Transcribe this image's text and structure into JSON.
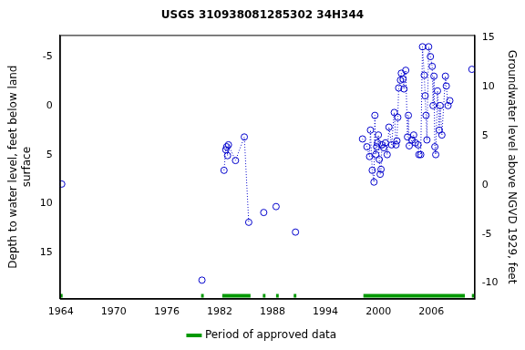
{
  "chart_data": {
    "type": "scatter",
    "title": "USGS 310938081285302 34H344",
    "ylabel": [
      "Depth to water level, feet below land",
      "surface"
    ],
    "y2label": "Groundwater level above NGVD 1929, feet",
    "xlim": [
      1963.9,
      2010.9
    ],
    "xticks": [
      1964,
      1970,
      1976,
      1982,
      1988,
      1994,
      2000,
      2006
    ],
    "ylim": [
      19.7,
      -7.2
    ],
    "yticks": [
      15,
      10,
      5,
      0,
      -5
    ],
    "y2lim": [
      -11.6,
      15.3
    ],
    "y2ticks": [
      -10,
      -5,
      0,
      5,
      10,
      15
    ],
    "grid": false,
    "legend": "bottom",
    "series": [
      {
        "color": "#0000cc",
        "marker": "circle",
        "line_style": "dotted",
        "x": [
          1964.1,
          1980.0,
          1982.5,
          1982.7,
          1982.8,
          1982.9,
          1983.0,
          1983.8,
          1984.8,
          1985.3,
          1987.0,
          1988.4,
          1990.6,
          1998.2,
          1998.7,
          1999.0,
          1999.1,
          1999.3,
          1999.5,
          1999.6,
          1999.7,
          1999.8,
          1999.9,
          2000.0,
          2000.1,
          2000.2,
          2000.3,
          2000.4,
          2000.6,
          2000.8,
          2001.0,
          2001.2,
          2001.5,
          2001.8,
          2002.0,
          2002.1,
          2002.2,
          2002.3,
          2002.5,
          2002.6,
          2002.8,
          2002.9,
          2003.1,
          2003.3,
          2003.4,
          2003.5,
          2003.8,
          2004.0,
          2004.2,
          2004.5,
          2004.6,
          2004.8,
          2005.0,
          2005.2,
          2005.3,
          2005.4,
          2005.5,
          2005.7,
          2005.9,
          2006.1,
          2006.2,
          2006.3,
          2006.4,
          2006.5,
          2006.7,
          2006.9,
          2007.0,
          2007.2,
          2007.6,
          2007.7,
          2007.9,
          2008.1,
          2010.6
        ],
        "values": [
          8,
          17.8,
          6.6,
          4.5,
          4.2,
          5.1,
          4.0,
          5.6,
          3.2,
          11.9,
          10.9,
          10.3,
          12.9,
          3.4,
          4.2,
          5.2,
          2.5,
          6.6,
          7.8,
          1.0,
          5.0,
          4.2,
          3.8,
          3.0,
          5.5,
          7.0,
          6.5,
          4.0,
          4.3,
          3.8,
          5.0,
          2.2,
          4.0,
          0.7,
          4.0,
          3.6,
          1.2,
          -1.8,
          -2.6,
          -3.3,
          -2.7,
          -1.7,
          -3.6,
          3.2,
          1.0,
          4.1,
          3.5,
          3.0,
          3.8,
          4.0,
          5.0,
          5.0,
          -6.0,
          -3.1,
          -1.0,
          1.0,
          3.5,
          -6.0,
          -5.0,
          -4.0,
          0.0,
          -3.0,
          4.2,
          5.0,
          -1.5,
          2.5,
          0.0,
          3.0,
          -3.0,
          -2.0,
          0.0,
          -0.5,
          -3.7
        ]
      },
      {
        "name": "Period of approved data",
        "color": "#009900",
        "type": "line",
        "x": [
          1963.9,
          1964.2,
          1979.9,
          1980.2,
          1982.3,
          1985.5,
          1986.9,
          1987.2,
          1988.4,
          1988.7,
          1990.4,
          1990.7,
          1998.3,
          2009.8,
          2010.6,
          2010.9
        ],
        "values": [
          19.4,
          19.4,
          19.4,
          19.4,
          19.4,
          19.4,
          19.4,
          19.4,
          19.4,
          19.4,
          19.4,
          19.4,
          19.4,
          19.4,
          19.4,
          19.4
        ]
      }
    ]
  }
}
